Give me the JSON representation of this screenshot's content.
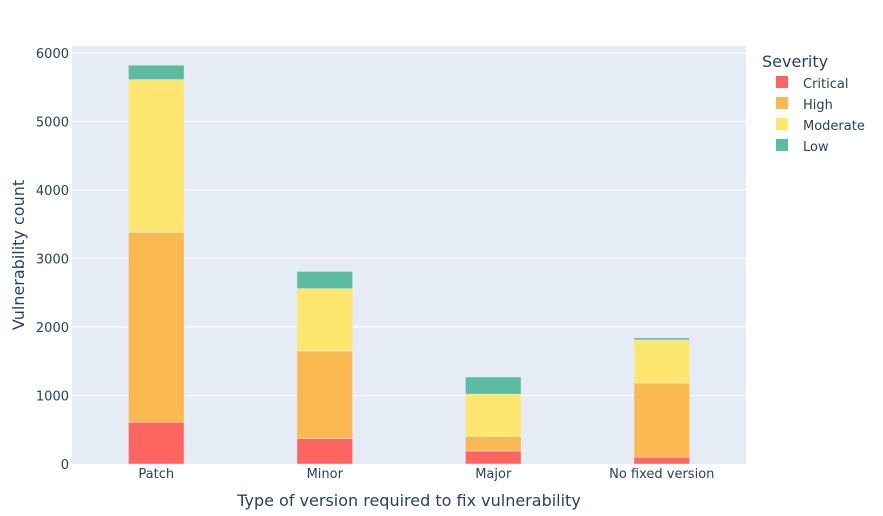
{
  "chart_data": {
    "type": "bar",
    "stacked": true,
    "categories": [
      "Patch",
      "Minor",
      "Major",
      "No fixed version"
    ],
    "series": [
      {
        "name": "Critical",
        "color": "#fe6460",
        "values": [
          610,
          370,
          190,
          100
        ]
      },
      {
        "name": "High",
        "color": "#f9b850",
        "values": [
          2770,
          1280,
          210,
          1080
        ]
      },
      {
        "name": "Moderate",
        "color": "#fee66f",
        "values": [
          2230,
          910,
          620,
          630
        ]
      },
      {
        "name": "Low",
        "color": "#5cbca1",
        "values": [
          210,
          250,
          250,
          30
        ]
      }
    ],
    "xlabel": "Type of version required to fix vulnerability",
    "ylabel": "Vulnerability count",
    "ylim": [
      0,
      6100
    ],
    "yticks": [
      0,
      1000,
      2000,
      3000,
      4000,
      5000,
      6000
    ],
    "ytick_labels": [
      "0",
      "1000",
      "2000",
      "3000",
      "4000",
      "5000",
      "6000"
    ],
    "legend": {
      "title": "Severity",
      "placement": "right"
    },
    "grid": true,
    "plot_background": "#e5ecf6"
  }
}
